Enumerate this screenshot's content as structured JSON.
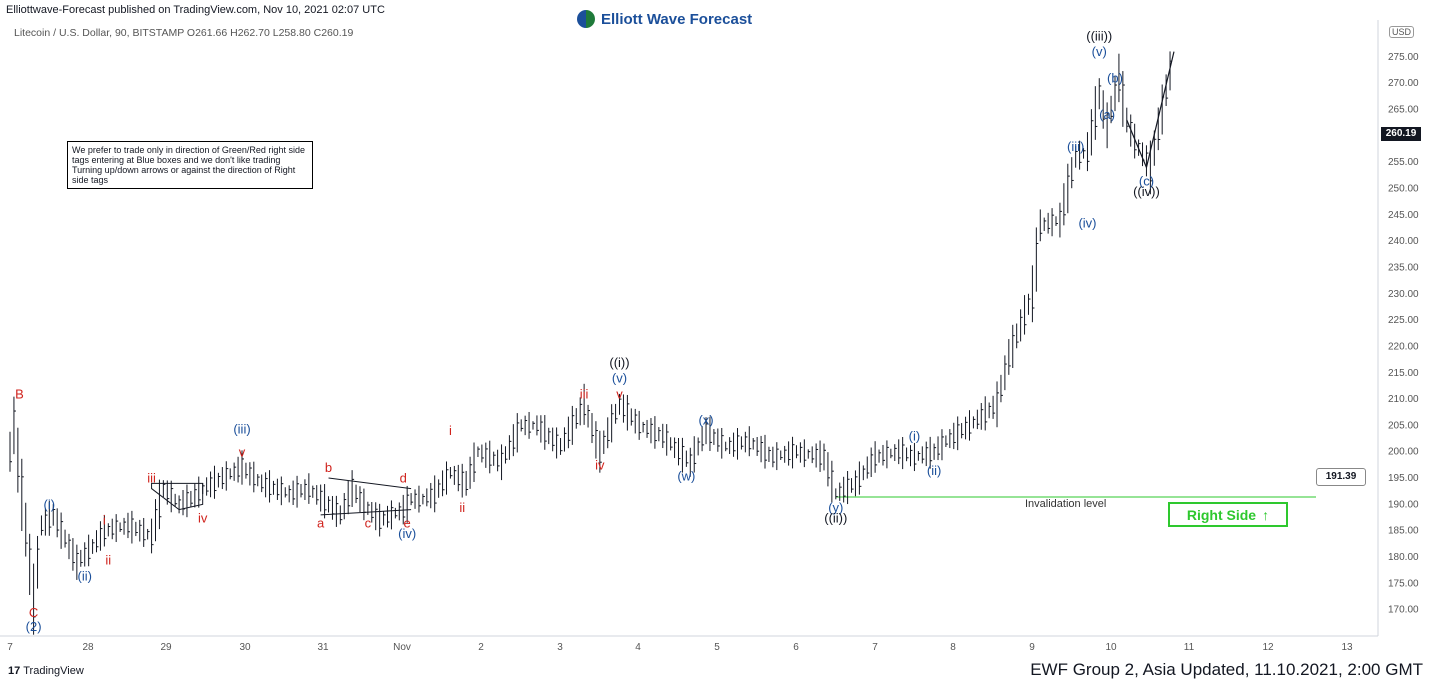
{
  "header": {
    "published": "Elliottwave-Forecast published on TradingView.com, Nov 10, 2021 02:07 UTC",
    "symbol_line": "Litecoin / U.S. Dollar, 90, BITSTAMP  O261.66  H262.70  L258.80  C260.19",
    "brand": "Elliott Wave Forecast"
  },
  "note": "We prefer to trade only in direction of Green/Red right side tags entering at Blue boxes and we don't like trading Turning up/down arrows or against the direction of Right side tags",
  "footer": "EWF Group 2, Asia Updated, 11.10.2021, 2:00 GMT",
  "tradingview_label": "TradingView",
  "price_tag": "260.19",
  "invalidation_value": "191.39",
  "invalidation_label": "Invalidation level",
  "right_side_label": "Right Side",
  "currency": "USD",
  "colors": {
    "wave_blue": "#1b4f9a",
    "wave_red": "#d0231d",
    "wave_black": "#131722",
    "invalidation_green": "#2ec82e"
  },
  "chart_data": {
    "type": "line",
    "title": "",
    "xlabel": "",
    "ylabel": "",
    "ylim": [
      165,
      282
    ],
    "x_ticks": [
      "7",
      "28",
      "29",
      "30",
      "31",
      "Nov",
      "2",
      "3",
      "4",
      "5",
      "6",
      "7",
      "8",
      "9",
      "10",
      "11",
      "12",
      "13"
    ],
    "y_ticks": [
      170,
      175,
      180,
      185,
      190,
      195,
      200,
      205,
      210,
      215,
      220,
      225,
      230,
      235,
      240,
      245,
      250,
      255,
      260,
      265,
      270,
      275
    ],
    "series": [
      {
        "points": [
          [
            0,
            200
          ],
          [
            0.05,
            205
          ],
          [
            0.3,
            172
          ],
          [
            0.4,
            186
          ],
          [
            0.55,
            188
          ],
          [
            0.85,
            179
          ],
          [
            1.05,
            182
          ],
          [
            1.2,
            185
          ],
          [
            1.5,
            186
          ],
          [
            1.8,
            184
          ],
          [
            1.95,
            193
          ],
          [
            2.15,
            190
          ],
          [
            2.3,
            191
          ],
          [
            2.45,
            193
          ],
          [
            2.7,
            195
          ],
          [
            2.95,
            197
          ],
          [
            3.2,
            194
          ],
          [
            3.55,
            192
          ],
          [
            3.8,
            193
          ],
          [
            4.05,
            190
          ],
          [
            4.2,
            188
          ],
          [
            4.35,
            193
          ],
          [
            4.5,
            190
          ],
          [
            4.7,
            187
          ],
          [
            5.0,
            189
          ],
          [
            5.1,
            191
          ],
          [
            5.25,
            191
          ],
          [
            5.4,
            192
          ],
          [
            5.6,
            196
          ],
          [
            5.8,
            194
          ],
          [
            5.95,
            200
          ],
          [
            6.25,
            198
          ],
          [
            6.5,
            205
          ],
          [
            6.7,
            205
          ],
          [
            7.0,
            201
          ],
          [
            7.3,
            209
          ],
          [
            7.5,
            200
          ],
          [
            7.75,
            209
          ],
          [
            8.0,
            205
          ],
          [
            8.3,
            203
          ],
          [
            8.5,
            200
          ],
          [
            8.65,
            198
          ],
          [
            8.85,
            204
          ],
          [
            9.1,
            201
          ],
          [
            9.4,
            202
          ],
          [
            9.7,
            199
          ],
          [
            10.0,
            200
          ],
          [
            10.35,
            199
          ],
          [
            10.5,
            192
          ],
          [
            10.75,
            194
          ],
          [
            11.0,
            199
          ],
          [
            11.3,
            200
          ],
          [
            11.5,
            199
          ],
          [
            11.75,
            200
          ],
          [
            11.9,
            202
          ],
          [
            12.2,
            205
          ],
          [
            12.55,
            209
          ],
          [
            12.7,
            218
          ],
          [
            12.9,
            226
          ],
          [
            13.0,
            230
          ],
          [
            13.1,
            243
          ],
          [
            13.35,
            244
          ],
          [
            13.55,
            256
          ],
          [
            13.7,
            257
          ],
          [
            13.85,
            268
          ],
          [
            13.95,
            262
          ],
          [
            14.1,
            271
          ],
          [
            14.2,
            263
          ],
          [
            14.3,
            259
          ],
          [
            14.5,
            254
          ],
          [
            14.8,
            276
          ]
        ]
      }
    ],
    "waves": [
      {
        "label": "B",
        "x": 0.12,
        "y": 209,
        "color": "red",
        "pos": "above"
      },
      {
        "label": "C",
        "x": 0.3,
        "y": 172,
        "color": "red",
        "pos": "below"
      },
      {
        "label": "(2)",
        "x": 0.3,
        "y": 172,
        "color": "blue",
        "pos": "below2"
      },
      {
        "label": "(i)",
        "x": 0.5,
        "y": 188,
        "color": "blue",
        "pos": "above"
      },
      {
        "label": "(ii)",
        "x": 0.95,
        "y": 179,
        "color": "blue",
        "pos": "below"
      },
      {
        "label": "i",
        "x": 1.2,
        "y": 185,
        "color": "red",
        "pos": "above"
      },
      {
        "label": "ii",
        "x": 1.25,
        "y": 182,
        "color": "red",
        "pos": "below"
      },
      {
        "label": "iii",
        "x": 1.8,
        "y": 193,
        "color": "red",
        "pos": "above"
      },
      {
        "label": "iv",
        "x": 2.45,
        "y": 190,
        "color": "red",
        "pos": "below"
      },
      {
        "label": "(iii)",
        "x": 2.95,
        "y": 200,
        "color": "blue",
        "pos": "above2"
      },
      {
        "label": "v",
        "x": 2.95,
        "y": 198,
        "color": "red",
        "pos": "above"
      },
      {
        "label": "a",
        "x": 3.95,
        "y": 189,
        "color": "red",
        "pos": "below"
      },
      {
        "label": "b",
        "x": 4.05,
        "y": 195,
        "color": "red",
        "pos": "above"
      },
      {
        "label": "c",
        "x": 4.55,
        "y": 189,
        "color": "red",
        "pos": "below"
      },
      {
        "label": "d",
        "x": 5.0,
        "y": 193,
        "color": "red",
        "pos": "above"
      },
      {
        "label": "e",
        "x": 5.05,
        "y": 189,
        "color": "red",
        "pos": "below"
      },
      {
        "label": "(iv)",
        "x": 5.05,
        "y": 187,
        "color": "blue",
        "pos": "below"
      },
      {
        "label": "i",
        "x": 5.6,
        "y": 202,
        "color": "red",
        "pos": "above"
      },
      {
        "label": "ii",
        "x": 5.75,
        "y": 192,
        "color": "red",
        "pos": "below"
      },
      {
        "label": "iii",
        "x": 7.3,
        "y": 209,
        "color": "red",
        "pos": "above"
      },
      {
        "label": "iv",
        "x": 7.5,
        "y": 200,
        "color": "red",
        "pos": "below"
      },
      {
        "label": "v",
        "x": 7.75,
        "y": 209,
        "color": "red",
        "pos": "above"
      },
      {
        "label": "(v)",
        "x": 7.75,
        "y": 212,
        "color": "blue",
        "pos": "above"
      },
      {
        "label": "((i))",
        "x": 7.75,
        "y": 215,
        "color": "black",
        "pos": "above"
      },
      {
        "label": "(w)",
        "x": 8.6,
        "y": 198,
        "color": "blue",
        "pos": "below"
      },
      {
        "label": "(x)",
        "x": 8.85,
        "y": 204,
        "color": "blue",
        "pos": "above"
      },
      {
        "label": "(y)",
        "x": 10.5,
        "y": 192,
        "color": "blue",
        "pos": "below"
      },
      {
        "label": "((ii))",
        "x": 10.5,
        "y": 190,
        "color": "black",
        "pos": "below"
      },
      {
        "label": "(i)",
        "x": 11.5,
        "y": 201,
        "color": "blue",
        "pos": "above"
      },
      {
        "label": "(ii)",
        "x": 11.75,
        "y": 199,
        "color": "blue",
        "pos": "below"
      },
      {
        "label": "(iii)",
        "x": 13.55,
        "y": 256,
        "color": "blue",
        "pos": "above"
      },
      {
        "label": "(iv)",
        "x": 13.7,
        "y": 246,
        "color": "blue",
        "pos": "below"
      },
      {
        "label": "(v)",
        "x": 13.85,
        "y": 274,
        "color": "blue",
        "pos": "above"
      },
      {
        "label": "((iii))",
        "x": 13.85,
        "y": 277,
        "color": "black",
        "pos": "above"
      },
      {
        "label": "(b)",
        "x": 14.05,
        "y": 269,
        "color": "blue",
        "pos": "above"
      },
      {
        "label": "(a)",
        "x": 13.95,
        "y": 264,
        "color": "blue",
        "pos": "mid"
      },
      {
        "label": "(c)",
        "x": 14.45,
        "y": 254,
        "color": "blue",
        "pos": "below"
      },
      {
        "label": "((iv))",
        "x": 14.45,
        "y": 252,
        "color": "black",
        "pos": "below"
      }
    ],
    "invalidation_level": 191.39
  }
}
